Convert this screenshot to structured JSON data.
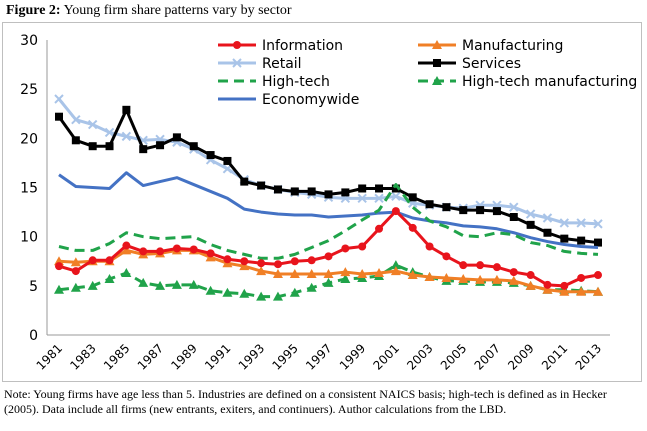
{
  "figure": {
    "title_label": "Figure 2:",
    "title_text": "Young firm share patterns vary by sector",
    "note": "Note: Young firms have age less than 5. Industries are defined on a consistent NAICS basis; high-tech is defined as in Hecker (2005). Data include all firms (new entrants, exiters, and continuers). Author calculations from the LBD."
  },
  "chart_data": {
    "type": "line",
    "title": "Young firm share patterns vary by sector",
    "xlabel": "",
    "ylabel": "",
    "ylim": [
      0,
      30
    ],
    "yticks": [
      0,
      5,
      10,
      15,
      20,
      25,
      30
    ],
    "x": [
      1981,
      1982,
      1983,
      1984,
      1985,
      1986,
      1987,
      1988,
      1989,
      1990,
      1991,
      1992,
      1993,
      1994,
      1995,
      1996,
      1997,
      1998,
      1999,
      2000,
      2001,
      2002,
      2003,
      2004,
      2005,
      2006,
      2007,
      2008,
      2009,
      2010,
      2011,
      2012,
      2013
    ],
    "xticks": [
      1981,
      1983,
      1985,
      1987,
      1989,
      1991,
      1993,
      1995,
      1997,
      1999,
      2001,
      2003,
      2005,
      2007,
      2009,
      2011,
      2013
    ],
    "grid": false,
    "legend_position": "top",
    "series": [
      {
        "name": "Information",
        "color": "#e8141c",
        "marker": "circle",
        "dash": "solid",
        "values": [
          7.0,
          6.5,
          7.6,
          7.6,
          9.1,
          8.5,
          8.5,
          8.8,
          8.7,
          8.3,
          7.7,
          7.5,
          7.3,
          7.2,
          7.5,
          7.6,
          8.0,
          8.8,
          9.0,
          10.8,
          12.6,
          10.9,
          9.0,
          8.0,
          7.1,
          7.1,
          6.9,
          6.4,
          6.1,
          5.1,
          5.0,
          5.8,
          6.1
        ]
      },
      {
        "name": "Manufacturing",
        "color": "#f07f26",
        "marker": "triangle",
        "dash": "solid",
        "values": [
          7.5,
          7.4,
          7.5,
          7.5,
          8.6,
          8.2,
          8.3,
          8.6,
          8.6,
          7.9,
          7.3,
          7.0,
          6.5,
          6.2,
          6.2,
          6.2,
          6.2,
          6.4,
          6.2,
          6.3,
          6.5,
          6.1,
          5.9,
          5.8,
          5.7,
          5.6,
          5.6,
          5.5,
          5.0,
          4.6,
          4.4,
          4.4,
          4.4
        ]
      },
      {
        "name": "Retail",
        "color": "#a9c4e8",
        "marker": "x",
        "dash": "solid",
        "values": [
          24.0,
          21.9,
          21.4,
          20.6,
          20.2,
          19.8,
          19.9,
          19.6,
          18.9,
          17.8,
          16.9,
          15.8,
          15.2,
          14.8,
          14.5,
          14.3,
          14.0,
          13.9,
          13.9,
          13.9,
          14.1,
          13.4,
          13.2,
          13.0,
          12.9,
          13.2,
          13.2,
          13.0,
          12.3,
          11.9,
          11.4,
          11.4,
          11.3
        ]
      },
      {
        "name": "Services",
        "color": "#000000",
        "marker": "square",
        "dash": "solid",
        "values": [
          22.2,
          19.8,
          19.2,
          19.2,
          22.9,
          18.9,
          19.3,
          20.1,
          19.2,
          18.3,
          17.7,
          15.6,
          15.2,
          14.8,
          14.6,
          14.6,
          14.3,
          14.5,
          14.9,
          14.9,
          14.9,
          14.0,
          13.3,
          13.0,
          12.7,
          12.7,
          12.6,
          12.0,
          11.2,
          10.4,
          9.8,
          9.6,
          9.4
        ]
      },
      {
        "name": "High-tech",
        "color": "#20a34a",
        "marker": "none",
        "dash": "dashed",
        "values": [
          9.0,
          8.6,
          8.6,
          9.3,
          10.4,
          10.0,
          9.8,
          9.9,
          10.0,
          9.2,
          8.6,
          8.2,
          7.8,
          7.8,
          8.2,
          8.9,
          9.6,
          10.6,
          11.7,
          12.7,
          15.3,
          13.0,
          11.6,
          11.0,
          10.1,
          10.0,
          10.4,
          10.2,
          9.4,
          9.1,
          8.5,
          8.3,
          8.2
        ]
      },
      {
        "name": "High-tech manufacturing",
        "color": "#20a34a",
        "marker": "triangle",
        "dash": "dashed",
        "values": [
          4.6,
          4.8,
          5.0,
          5.7,
          6.3,
          5.3,
          5.0,
          5.1,
          5.1,
          4.5,
          4.3,
          4.2,
          3.9,
          3.9,
          4.3,
          4.8,
          5.3,
          5.7,
          5.8,
          6.0,
          7.1,
          6.4,
          5.9,
          5.5,
          5.5,
          5.4,
          5.4,
          5.3,
          5.0,
          4.6,
          4.6,
          4.5,
          4.4
        ]
      },
      {
        "name": "Economywide",
        "color": "#4472c4",
        "marker": "none",
        "dash": "solid",
        "values": [
          16.3,
          15.1,
          15.0,
          14.9,
          16.5,
          15.2,
          15.6,
          16.0,
          15.3,
          14.6,
          13.9,
          12.8,
          12.5,
          12.3,
          12.2,
          12.2,
          12.0,
          12.1,
          12.2,
          12.4,
          12.5,
          11.9,
          11.6,
          11.4,
          11.1,
          11.0,
          10.8,
          10.4,
          9.9,
          9.5,
          9.2,
          9.0,
          8.9
        ]
      }
    ]
  }
}
